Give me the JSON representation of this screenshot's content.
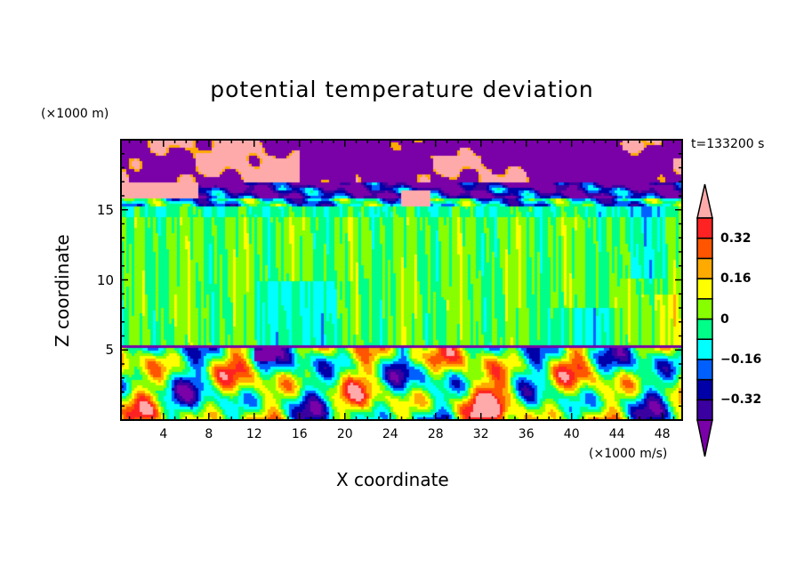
{
  "chart_data": {
    "type": "heatmap",
    "title": "potential temperature deviation",
    "xlabel": "X coordinate",
    "ylabel": "Z coordinate",
    "x_unit": "(×1000 m/s)",
    "y_unit": "(×1000 m)",
    "annotation": "t=133200 s",
    "xlim": [
      0.25,
      49.75
    ],
    "ylim": [
      0,
      20
    ],
    "xticks": [
      4,
      8,
      12,
      16,
      20,
      24,
      28,
      32,
      36,
      40,
      44,
      48
    ],
    "yticks": [
      5,
      10,
      15
    ],
    "levels": [
      -0.4,
      -0.32,
      -0.24,
      -0.16,
      -0.08,
      0,
      0.08,
      0.16,
      0.24,
      0.32,
      0.4
    ],
    "colorbar_labels": [
      "0.32",
      "0.16",
      "0",
      "-0.16",
      "-0.32"
    ],
    "colorbar_label_values": [
      0.32,
      0.16,
      0,
      -0.16,
      -0.32
    ],
    "colors": [
      "#7a00a8",
      "#3a00a0",
      "#0000a8",
      "#0060ff",
      "#00ffff",
      "#00ff88",
      "#88ff00",
      "#ffff00",
      "#ffaa00",
      "#ff5500",
      "#ff2222",
      "#ffaaaa"
    ]
  }
}
